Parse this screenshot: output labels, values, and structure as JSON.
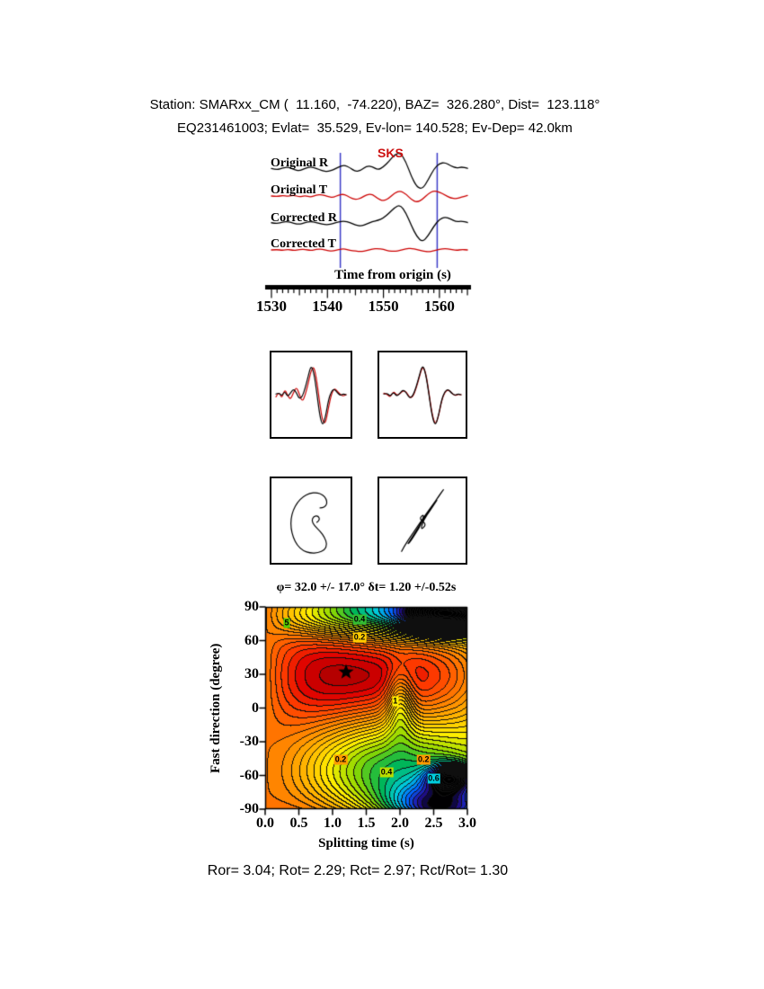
{
  "header": {
    "line1": "Station: SMARxx_CM (  11.160,  -74.220), BAZ=  326.280°, Dist=  123.118°",
    "line2": "EQ231461003; Evlat=  35.529, Ev-lon= 140.528; Ev-Dep= 42.0km"
  },
  "footer": {
    "stats": "Ror= 3.04; Rot= 2.29; Rct= 2.97; Rct/Rot= 1.30"
  },
  "colors": {
    "trace_black": "#000000",
    "trace_red": "#cc0000",
    "window_line_blue": "#3c3cc8",
    "phase_label_red": "#cc1111"
  },
  "chart_data": [
    {
      "type": "line",
      "id": "seismogram-traces",
      "phase_label": "SKS",
      "xlabel": "Time from origin (s)",
      "x_ticks": [
        "1530",
        "1540",
        "1550",
        "1560"
      ],
      "t_start": 1530,
      "t_step": 1,
      "window": [
        1542.3,
        1559.6
      ],
      "traces": [
        {
          "label": "Original R",
          "color": "#000000",
          "values": [
            0.02,
            -0.04,
            0.05,
            0.08,
            -0.02,
            -0.08,
            0.03,
            0.1,
            0.03,
            -0.07,
            -0.11,
            -0.04,
            0.09,
            0.17,
            0.06,
            -0.11,
            -0.05,
            0.13,
            0.11,
            -0.04,
            0.09,
            0.33,
            0.62,
            0.7,
            0.32,
            -0.33,
            -0.78,
            -0.85,
            -0.46,
            0.0,
            0.24,
            0.28,
            0.14,
            0.04,
            0.09,
            0.03
          ]
        },
        {
          "label": "Original T",
          "color": "#cc0000",
          "values": [
            0.0,
            -0.03,
            0.03,
            -0.02,
            0.04,
            -0.04,
            0.02,
            -0.05,
            0.04,
            0.06,
            -0.02,
            -0.07,
            0.05,
            0.08,
            -0.06,
            -0.16,
            -0.09,
            0.06,
            0.08,
            -0.11,
            -0.22,
            -0.09,
            0.13,
            0.22,
            0.09,
            -0.16,
            -0.27,
            -0.14,
            0.1,
            0.23,
            0.17,
            0.04,
            -0.09,
            -0.12,
            -0.04,
            0.02
          ]
        },
        {
          "label": "Corrected R",
          "color": "#000000",
          "values": [
            0.01,
            -0.03,
            0.04,
            0.06,
            -0.02,
            -0.06,
            0.02,
            0.07,
            0.02,
            -0.05,
            -0.08,
            -0.03,
            0.05,
            0.08,
            0.02,
            -0.09,
            -0.13,
            -0.05,
            0.06,
            0.11,
            0.21,
            0.42,
            0.66,
            0.78,
            0.44,
            -0.12,
            -0.6,
            -0.82,
            -0.54,
            -0.14,
            0.16,
            0.26,
            0.17,
            0.05,
            0.08,
            0.02
          ]
        },
        {
          "label": "Corrected T",
          "color": "#cc0000",
          "values": [
            0.0,
            0.02,
            -0.02,
            0.03,
            -0.03,
            0.02,
            0.03,
            -0.03,
            0.02,
            0.04,
            -0.03,
            -0.05,
            0.02,
            0.05,
            -0.02,
            -0.05,
            -0.07,
            -0.03,
            0.04,
            0.06,
            0.02,
            -0.04,
            -0.06,
            -0.02,
            0.05,
            0.07,
            0.02,
            -0.05,
            -0.08,
            -0.04,
            0.03,
            0.06,
            0.03,
            -0.02,
            0.02,
            0.0
          ]
        }
      ]
    },
    {
      "type": "line",
      "id": "waveform-compare-original",
      "black": [
        0.02,
        0.06,
        -0.04,
        0.1,
        -0.06,
        0.05,
        0.16,
        0.06,
        -0.12,
        -0.06,
        0.18,
        0.5,
        0.82,
        0.62,
        0.05,
        -0.58,
        -0.88,
        -0.6,
        -0.14,
        0.1,
        0.16,
        0.06,
        -0.02,
        0.02,
        0.0
      ],
      "red": [
        -0.06,
        0.1,
        -0.12,
        0.16,
        -0.02,
        -0.14,
        0.06,
        0.22,
        0.02,
        -0.2,
        -0.02,
        0.3,
        0.66,
        0.8,
        0.38,
        -0.25,
        -0.75,
        -0.8,
        -0.35,
        0.02,
        0.18,
        0.1,
        0.0,
        -0.04,
        0.0
      ]
    },
    {
      "type": "line",
      "id": "waveform-compare-corrected",
      "black": [
        0.02,
        0.05,
        -0.05,
        0.08,
        -0.05,
        0.04,
        0.14,
        0.05,
        -0.1,
        -0.04,
        0.2,
        0.52,
        0.84,
        0.6,
        0.02,
        -0.6,
        -0.88,
        -0.58,
        -0.12,
        0.1,
        0.15,
        0.05,
        -0.02,
        0.02,
        0.0
      ],
      "red": [
        0.04,
        0.02,
        -0.08,
        0.1,
        -0.02,
        0.02,
        0.12,
        0.08,
        -0.08,
        -0.06,
        0.16,
        0.48,
        0.8,
        0.63,
        0.06,
        -0.55,
        -0.85,
        -0.6,
        -0.15,
        0.08,
        0.14,
        0.06,
        -0.03,
        0.01,
        0.0
      ]
    },
    {
      "type": "scatter",
      "id": "particle-motion-original",
      "points": [
        [
          0.18,
          -0.05
        ],
        [
          0.28,
          0.02
        ],
        [
          0.22,
          0.14
        ],
        [
          0.08,
          0.12
        ],
        [
          0.02,
          0.0
        ],
        [
          0.1,
          -0.14
        ],
        [
          0.28,
          -0.3
        ],
        [
          0.42,
          -0.48
        ],
        [
          0.5,
          -0.68
        ],
        [
          0.42,
          -0.84
        ],
        [
          0.22,
          -0.92
        ],
        [
          -0.02,
          -0.93
        ],
        [
          -0.25,
          -0.86
        ],
        [
          -0.43,
          -0.7
        ],
        [
          -0.55,
          -0.48
        ],
        [
          -0.62,
          -0.22
        ],
        [
          -0.62,
          0.05
        ],
        [
          -0.55,
          0.3
        ],
        [
          -0.42,
          0.52
        ],
        [
          -0.25,
          0.68
        ],
        [
          -0.04,
          0.78
        ],
        [
          0.18,
          0.8
        ],
        [
          0.36,
          0.74
        ],
        [
          0.47,
          0.62
        ],
        [
          0.5,
          0.48
        ],
        [
          0.42,
          0.38
        ],
        [
          0.28,
          0.36
        ]
      ]
    },
    {
      "type": "scatter",
      "id": "particle-motion-corrected",
      "points": [
        [
          -0.58,
          -0.88
        ],
        [
          -0.5,
          -0.72
        ],
        [
          -0.32,
          -0.44
        ],
        [
          -0.12,
          -0.14
        ],
        [
          0.08,
          0.16
        ],
        [
          0.28,
          0.44
        ],
        [
          0.45,
          0.68
        ],
        [
          0.55,
          0.84
        ],
        [
          0.6,
          0.9
        ],
        [
          0.52,
          0.8
        ],
        [
          0.36,
          0.55
        ],
        [
          0.18,
          0.28
        ],
        [
          0.02,
          0.02
        ],
        [
          -0.15,
          -0.25
        ],
        [
          -0.3,
          -0.5
        ],
        [
          -0.42,
          -0.68
        ],
        [
          -0.35,
          -0.62
        ],
        [
          -0.18,
          -0.35
        ],
        [
          -0.02,
          -0.08
        ],
        [
          0.05,
          0.2
        ],
        [
          -0.1,
          0.05
        ],
        [
          0.12,
          -0.1
        ],
        [
          -0.05,
          -0.28
        ],
        [
          0.02,
          0.0
        ],
        [
          0.22,
          0.3
        ],
        [
          0.4,
          0.58
        ]
      ]
    },
    {
      "type": "heatmap",
      "id": "splitting-error-surface",
      "title": "φ= 32.0 +/- 17.0° δt= 1.20 +/-0.52s",
      "xlabel": "Splitting time (s)",
      "ylabel": "Fast direction (degree)",
      "xlim": [
        0.0,
        3.0
      ],
      "ylim": [
        -90,
        90
      ],
      "x_ticks": [
        "0.0",
        "0.5",
        "1.0",
        "1.5",
        "2.0",
        "2.5",
        "3.0"
      ],
      "y_ticks": [
        "90",
        "60",
        "30",
        "0",
        "-30",
        "-60",
        "-90"
      ],
      "best_fit": {
        "phi_deg": 32.0,
        "phi_err_deg": 17.0,
        "dt_s": 1.2,
        "dt_err_s": 0.52
      },
      "contour_labels": [
        {
          "text": "5",
          "x": 0.32,
          "y": 76,
          "bg": "#55c800"
        },
        {
          "text": "0.4",
          "x": 1.4,
          "y": 79,
          "bg": "#33bb33"
        },
        {
          "text": "0.2",
          "x": 1.4,
          "y": 63,
          "bg": "#ffcc00"
        },
        {
          "text": "1",
          "x": 1.93,
          "y": 6,
          "bg": "#ffee00"
        },
        {
          "text": "0.2",
          "x": 1.12,
          "y": -46,
          "bg": "#ff9900"
        },
        {
          "text": "0.4",
          "x": 1.8,
          "y": -57,
          "bg": "#bbdd00"
        },
        {
          "text": "0.2",
          "x": 2.35,
          "y": -46,
          "bg": "#ff9900"
        },
        {
          "text": "0.6",
          "x": 2.5,
          "y": -63,
          "bg": "#00ccdd"
        }
      ]
    }
  ]
}
